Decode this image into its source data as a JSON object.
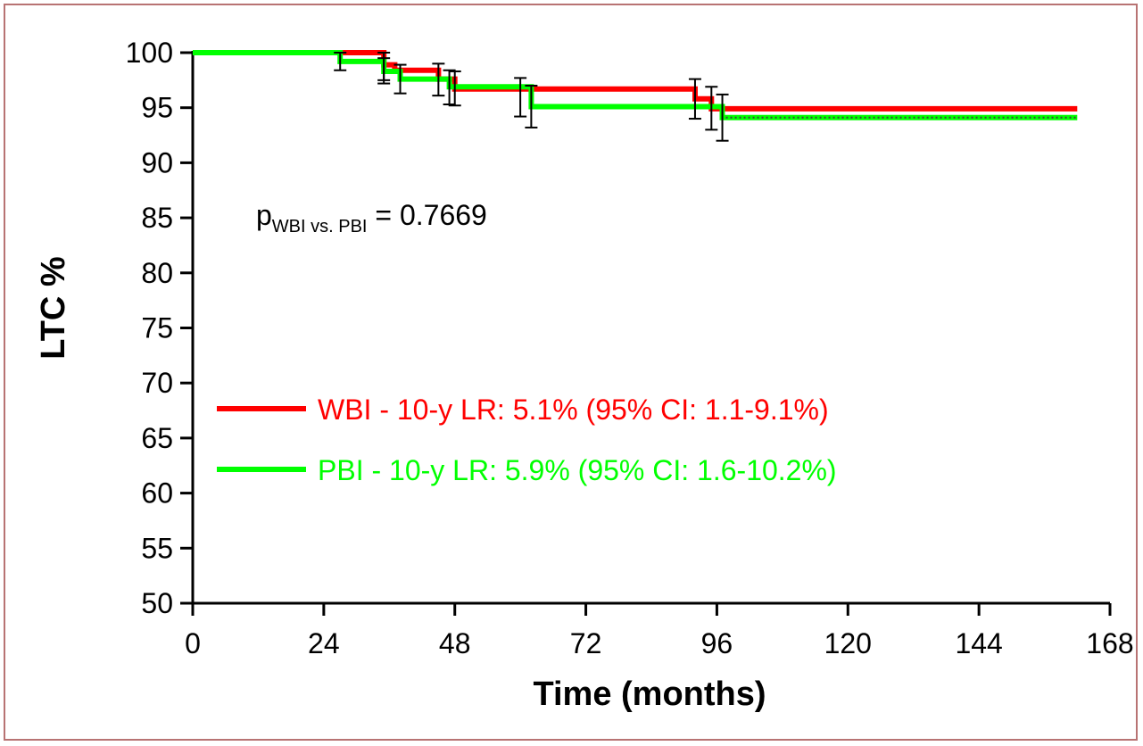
{
  "chart_data": {
    "type": "line",
    "xlabel": "Time (months)",
    "ylabel": "LTC %",
    "xlim": [
      0,
      168
    ],
    "ylim": [
      50,
      100
    ],
    "x_ticks": [
      0,
      24,
      48,
      72,
      96,
      120,
      144,
      168
    ],
    "y_ticks": [
      50,
      55,
      60,
      65,
      70,
      75,
      80,
      85,
      90,
      95,
      100
    ],
    "annotation": {
      "main": "p",
      "subscript": "WBI vs. PBI",
      "suffix": " = 0.7669"
    },
    "series": [
      {
        "name": "WBI - 10-y LR: 5.1% (95% CI: 1.1-9.1%)",
        "color": "#ff0000",
        "steps": [
          [
            0,
            100
          ],
          [
            35,
            100
          ],
          [
            35,
            98.9
          ],
          [
            37,
            98.9
          ],
          [
            37,
            98.4
          ],
          [
            45,
            98.4
          ],
          [
            45,
            97.6
          ],
          [
            48,
            97.6
          ],
          [
            48,
            96.7
          ],
          [
            92,
            96.7
          ],
          [
            92,
            95.8
          ],
          [
            95,
            95.8
          ],
          [
            95,
            94.9
          ],
          [
            162,
            94.9
          ]
        ],
        "error_bars": [
          [
            35,
            97.5,
            100
          ],
          [
            45,
            96.1,
            99.0
          ],
          [
            48,
            95.2,
            98.3
          ],
          [
            60,
            94.2,
            97.7
          ],
          [
            92,
            94.0,
            97.6
          ],
          [
            95,
            93.0,
            96.9
          ]
        ]
      },
      {
        "name": "PBI - 10-y LR: 5.9% (95% CI: 1.6-10.2%)",
        "color": "#00ff00",
        "steps": [
          [
            0,
            100
          ],
          [
            27,
            100
          ],
          [
            27,
            99.2
          ],
          [
            35,
            99.2
          ],
          [
            35,
            98.3
          ],
          [
            38,
            98.3
          ],
          [
            38,
            97.6
          ],
          [
            47,
            97.6
          ],
          [
            47,
            96.9
          ],
          [
            62,
            96.9
          ],
          [
            62,
            95.1
          ],
          [
            97,
            95.1
          ],
          [
            97,
            94.1
          ],
          [
            162,
            94.1
          ]
        ],
        "error_bars": [
          [
            27,
            98.4,
            100
          ],
          [
            35,
            97.2,
            99.5
          ],
          [
            38,
            96.3,
            98.9
          ],
          [
            47,
            95.3,
            98.4
          ],
          [
            62,
            93.2,
            97.0
          ],
          [
            97,
            92.0,
            96.2
          ]
        ]
      }
    ],
    "censor_color": "#404040"
  }
}
